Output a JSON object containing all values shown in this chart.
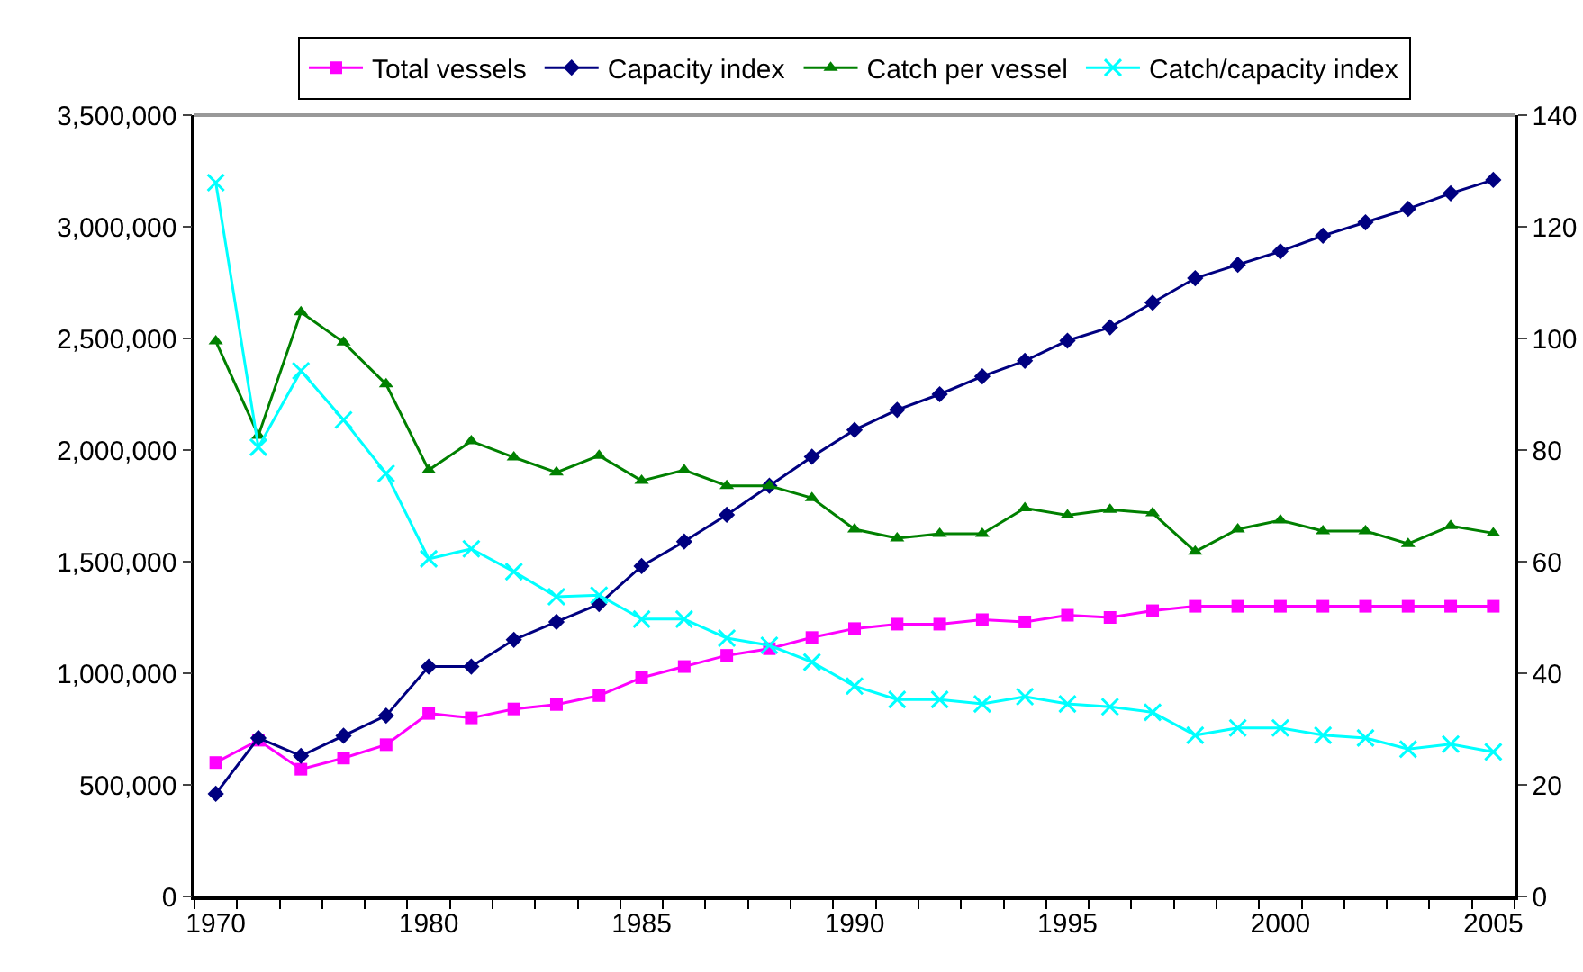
{
  "chart_data": {
    "type": "line",
    "categories": [
      "1970",
      null,
      null,
      null,
      null,
      "1980",
      null,
      null,
      null,
      null,
      "1985",
      null,
      null,
      null,
      null,
      "1990",
      null,
      null,
      null,
      null,
      "1995",
      null,
      null,
      null,
      null,
      "2000",
      null,
      null,
      null,
      null,
      "2005"
    ],
    "series": [
      {
        "name": "Total vessels",
        "color": "#ff00ff",
        "marker": "square",
        "values": [
          600000,
          700000,
          570000,
          620000,
          680000,
          820000,
          800000,
          840000,
          860000,
          900000,
          980000,
          1030000,
          1080000,
          1110000,
          1160000,
          1200000,
          1220000,
          1220000,
          1240000,
          1230000,
          1260000,
          1250000,
          1280000,
          1300000,
          1300000,
          1300000,
          1300000,
          1300000,
          1300000,
          1300000,
          1300000
        ]
      },
      {
        "name": "Capacity index",
        "color": "#000080",
        "marker": "diamond",
        "values": [
          460000,
          710000,
          630000,
          720000,
          810000,
          1030000,
          1030000,
          1150000,
          1230000,
          1310000,
          1480000,
          1590000,
          1710000,
          1840000,
          1970000,
          2090000,
          2180000,
          2250000,
          2330000,
          2400000,
          2490000,
          2550000,
          2660000,
          2770000,
          2830000,
          2890000,
          2960000,
          3020000,
          3080000,
          3150000,
          3210000
        ]
      },
      {
        "name": "Catch per vessel",
        "color": "#008000",
        "marker": "triangle",
        "axis": "y2",
        "values": [
          99.5,
          82.6,
          104.7,
          99.3,
          91.8,
          76.4,
          81.6,
          78.7,
          76,
          79,
          74.5,
          76.4,
          73.6,
          73.6,
          71.4,
          65.8,
          64.2,
          65,
          65,
          69.6,
          68.3,
          69.3,
          68.7,
          61.8,
          65.8,
          67.4,
          65.5,
          65.5,
          63.2,
          66.4,
          65.1
        ]
      },
      {
        "name": "Catch/capacity index",
        "color": "#00ffff",
        "marker": "cross",
        "axis": "y2",
        "values": [
          127.9,
          80.5,
          94.2,
          85.4,
          75.8,
          60.5,
          62.3,
          58.2,
          53.7,
          54,
          49.7,
          49.7,
          46.3,
          45,
          42,
          37.7,
          35.3,
          35.3,
          34.5,
          35.8,
          34.5,
          34,
          33,
          28.9,
          30.2,
          30.2,
          28.9,
          28.4,
          26.4,
          27.3,
          25.9
        ]
      }
    ],
    "ylim": [
      0,
      3500000
    ],
    "yticks": [
      0,
      {
        "value": 500000,
        "label": "500,000"
      },
      {
        "value": 1000000,
        "label": "1,000,000"
      },
      {
        "value": 1500000,
        "label": "1,500,000"
      },
      {
        "value": 2000000,
        "label": "2,000,000"
      },
      {
        "value": 2500000,
        "label": "2,500,000"
      },
      {
        "value": 3000000,
        "label": "3,000,000"
      },
      {
        "value": 3500000,
        "label": "3,500,000"
      }
    ],
    "y2lim": [
      0,
      140
    ],
    "y2ticks": [
      0,
      20,
      40,
      60,
      80,
      100,
      120,
      140
    ],
    "grid": false,
    "legend": "top",
    "line_style": "solid"
  }
}
